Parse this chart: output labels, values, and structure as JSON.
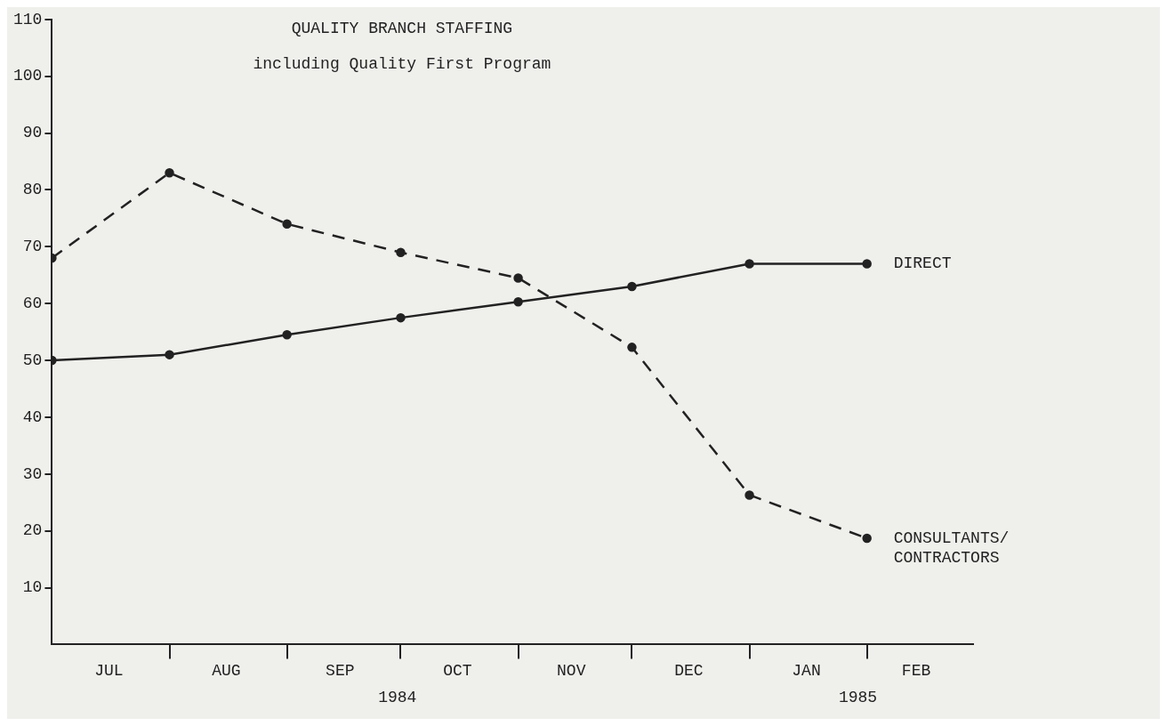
{
  "chart_data": {
    "type": "line",
    "title": "QUALITY BRANCH STAFFING",
    "subtitle": "including Quality First Program",
    "x": [
      "1984-07-01",
      "1984-08-01",
      "1984-09-01",
      "1984-10-01",
      "1984-11-01",
      "1984-12-01",
      "1985-01-01",
      "1985-02-01"
    ],
    "xlim": [
      "1984-07-01",
      "1985-03-01"
    ],
    "xticks": [
      {
        "value": "1984-07-16",
        "label": "JUL"
      },
      {
        "value": "1984-08-01",
        "label": null
      },
      {
        "value": "1984-08-16",
        "label": "AUG"
      },
      {
        "value": "1984-09-01",
        "label": null
      },
      {
        "value": "1984-09-15",
        "label": "SEP"
      },
      {
        "value": "1984-10-01",
        "label": null
      },
      {
        "value": "1984-10-16",
        "label": "OCT"
      },
      {
        "value": "1984-11-01",
        "label": null
      },
      {
        "value": "1984-11-15",
        "label": "NOV"
      },
      {
        "value": "1984-12-01",
        "label": null
      },
      {
        "value": "1984-12-16",
        "label": "DEC"
      },
      {
        "value": "1985-01-01",
        "label": null
      },
      {
        "value": "1985-01-16",
        "label": "JAN"
      },
      {
        "value": "1985-02-01",
        "label": null
      },
      {
        "value": "1985-02-14",
        "label": "FEB"
      }
    ],
    "ylim": [
      0,
      110
    ],
    "yticks": [
      10,
      20,
      30,
      40,
      50,
      60,
      70,
      80,
      90,
      100,
      110
    ],
    "series": [
      {
        "name": "DIRECT",
        "color": "#222222",
        "line_style": "solid",
        "values": [
          50,
          51,
          54.5,
          57.5,
          60.3,
          63,
          67,
          67
        ]
      },
      {
        "name": "CONSULTANTS/ CONTRACTORS",
        "color": "#222222",
        "line_style": "dashed",
        "values": [
          68,
          83,
          74,
          69,
          64.5,
          52.3,
          26.3,
          18.7
        ]
      }
    ],
    "annotations": [
      "1984",
      "1985"
    ],
    "marker": "circle",
    "grid": false,
    "legend": false
  }
}
